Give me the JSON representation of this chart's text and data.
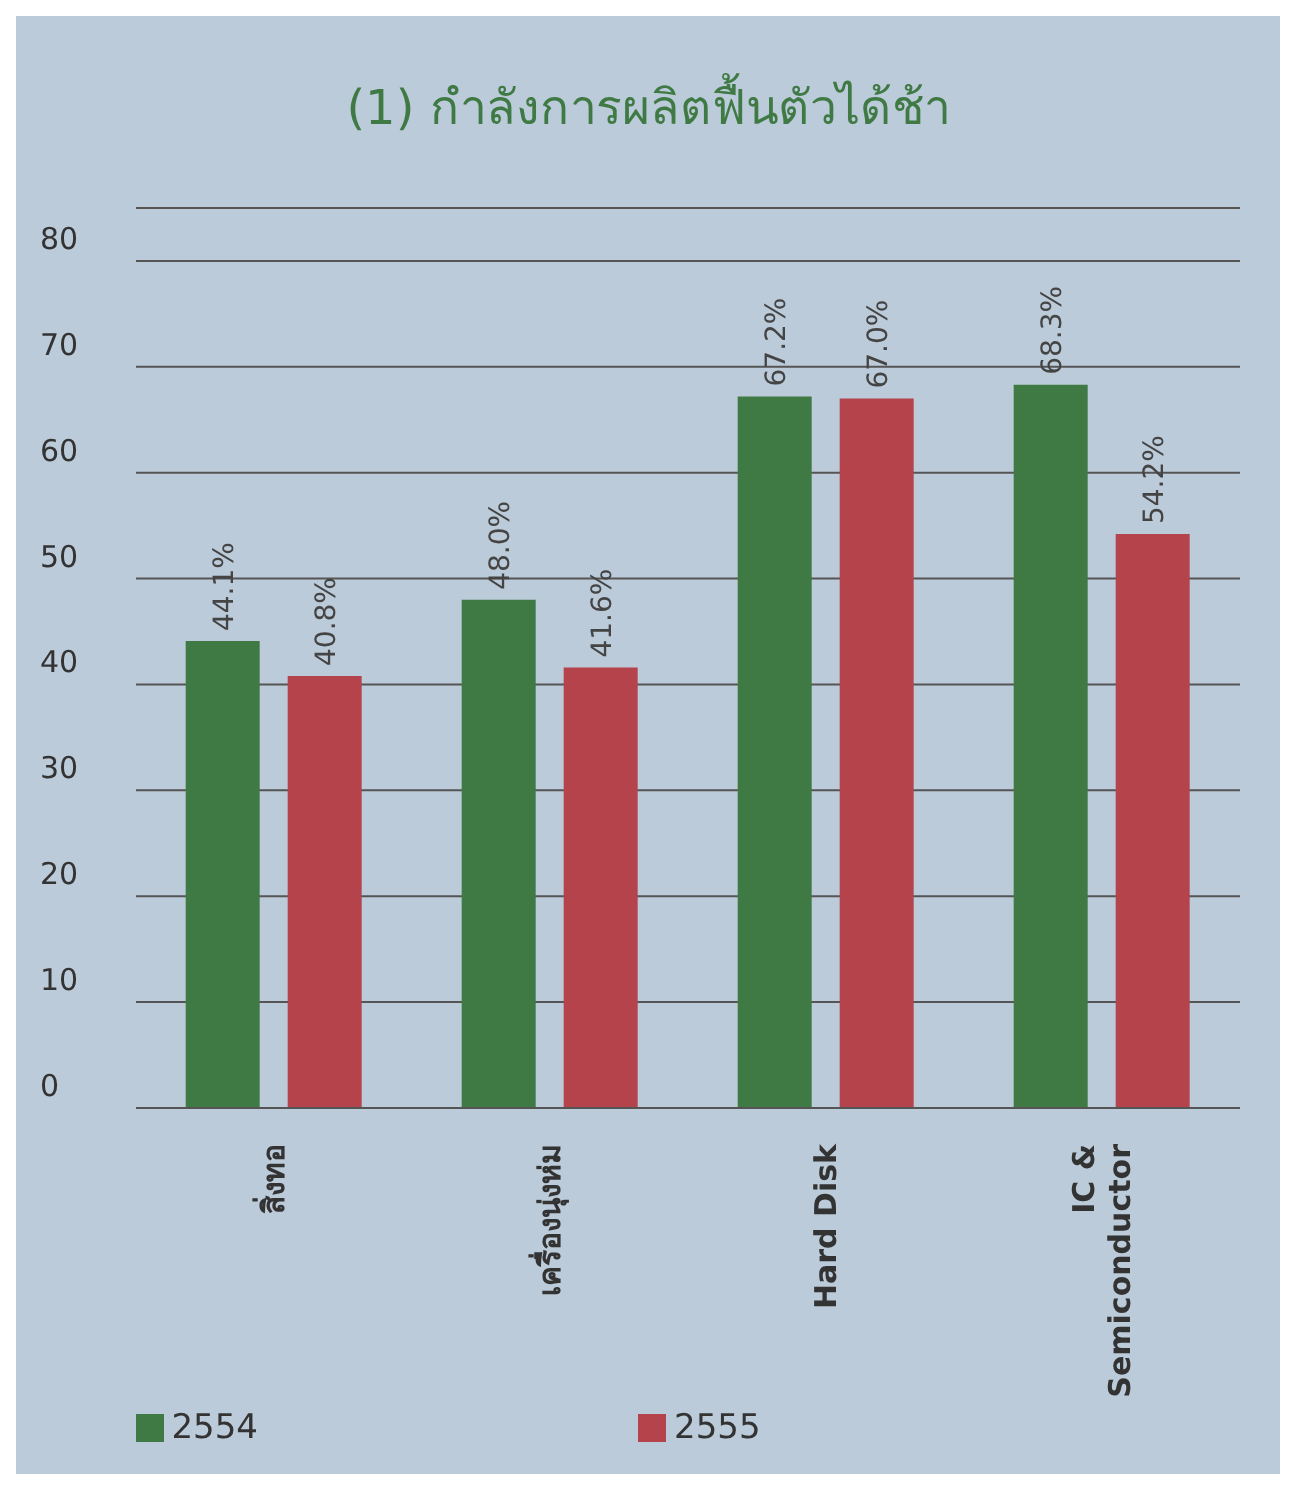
{
  "chart_data": {
    "type": "bar",
    "title": "(1) กำลังการผลิตฟื้นตัวได้ช้า",
    "categories": [
      "สิ่งทอ",
      "เครื่องนุ่งห่ม",
      "Hard Disk",
      "IC & Semiconductor"
    ],
    "series": [
      {
        "name": "2554",
        "color": "#3f7a45",
        "values": [
          44.1,
          48.0,
          67.2,
          68.3
        ],
        "value_labels": [
          "44.1%",
          "48.0%",
          "67.2%",
          "68.3%"
        ]
      },
      {
        "name": "2555",
        "color": "#b5434b",
        "values": [
          40.8,
          41.6,
          67.0,
          54.2
        ],
        "value_labels": [
          "40.8%",
          "41.6%",
          "67.0%",
          "54.2%"
        ]
      }
    ],
    "ylim": [
      0,
      85
    ],
    "yticks": [
      0,
      10,
      20,
      30,
      40,
      50,
      60,
      70,
      80
    ],
    "grid": "y",
    "legend": "bottom"
  }
}
